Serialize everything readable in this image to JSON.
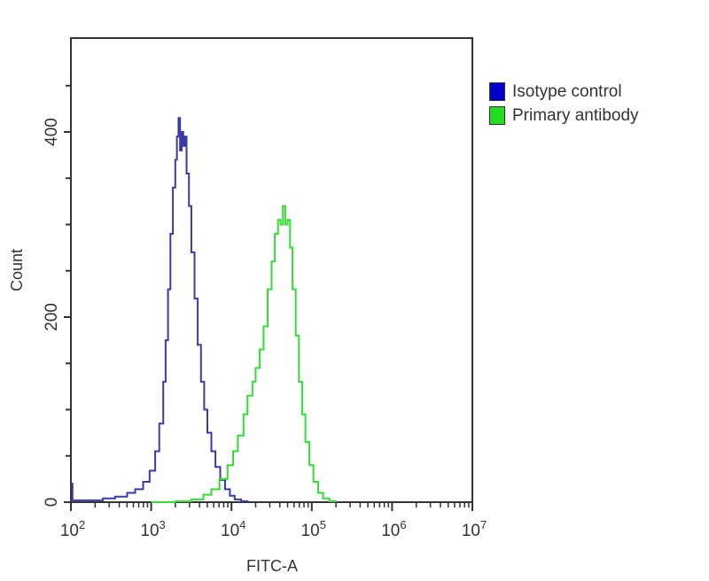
{
  "chart_data": {
    "type": "line",
    "title": "",
    "xlabel": "FITC-A",
    "ylabel": "Count",
    "xscale": "log",
    "xlim_log10": [
      2,
      7
    ],
    "ylim": [
      0,
      500
    ],
    "x_ticks": [
      {
        "exp": 2,
        "label": "10",
        "sup": "2"
      },
      {
        "exp": 3,
        "label": "10",
        "sup": "3"
      },
      {
        "exp": 4,
        "label": "10",
        "sup": "4"
      },
      {
        "exp": 5,
        "label": "10",
        "sup": "5"
      },
      {
        "exp": 6,
        "label": "10",
        "sup": "6"
      },
      {
        "exp": 7,
        "label": "10",
        "sup": "7"
      }
    ],
    "y_ticks": [
      0,
      200,
      400
    ],
    "y_minor_step": 50,
    "grid": false,
    "legend_position": "right-outside-top",
    "series": [
      {
        "name": "Isotype control",
        "color": "#0000cc",
        "line_color": "#3a3aa8",
        "peak": {
          "log10_x": 3.34,
          "count": 415
        },
        "points": [
          [
            2.0,
            20
          ],
          [
            2.02,
            2
          ],
          [
            2.2,
            2
          ],
          [
            2.4,
            4
          ],
          [
            2.55,
            6
          ],
          [
            2.7,
            10
          ],
          [
            2.8,
            14
          ],
          [
            2.9,
            22
          ],
          [
            2.98,
            34
          ],
          [
            3.05,
            55
          ],
          [
            3.1,
            85
          ],
          [
            3.15,
            130
          ],
          [
            3.18,
            175
          ],
          [
            3.21,
            230
          ],
          [
            3.24,
            290
          ],
          [
            3.27,
            340
          ],
          [
            3.3,
            370
          ],
          [
            3.32,
            395
          ],
          [
            3.34,
            415
          ],
          [
            3.36,
            380
          ],
          [
            3.38,
            400
          ],
          [
            3.4,
            385
          ],
          [
            3.42,
            395
          ],
          [
            3.44,
            355
          ],
          [
            3.47,
            320
          ],
          [
            3.5,
            270
          ],
          [
            3.54,
            220
          ],
          [
            3.58,
            170
          ],
          [
            3.62,
            130
          ],
          [
            3.66,
            100
          ],
          [
            3.7,
            75
          ],
          [
            3.75,
            55
          ],
          [
            3.8,
            38
          ],
          [
            3.86,
            24
          ],
          [
            3.92,
            14
          ],
          [
            3.98,
            7
          ],
          [
            4.04,
            3
          ],
          [
            4.12,
            1
          ],
          [
            4.2,
            0
          ]
        ]
      },
      {
        "name": "Primary antibody",
        "color": "#22dd22",
        "line_color": "#33dd33",
        "peak": {
          "log10_x": 4.64,
          "count": 320
        },
        "points": [
          [
            3.0,
            0
          ],
          [
            3.3,
            1
          ],
          [
            3.5,
            3
          ],
          [
            3.65,
            8
          ],
          [
            3.75,
            14
          ],
          [
            3.85,
            25
          ],
          [
            3.95,
            40
          ],
          [
            4.02,
            55
          ],
          [
            4.08,
            72
          ],
          [
            4.15,
            95
          ],
          [
            4.2,
            115
          ],
          [
            4.26,
            130
          ],
          [
            4.3,
            145
          ],
          [
            4.35,
            165
          ],
          [
            4.4,
            190
          ],
          [
            4.45,
            230
          ],
          [
            4.5,
            260
          ],
          [
            4.54,
            290
          ],
          [
            4.58,
            305
          ],
          [
            4.61,
            300
          ],
          [
            4.64,
            320
          ],
          [
            4.67,
            300
          ],
          [
            4.7,
            305
          ],
          [
            4.73,
            275
          ],
          [
            4.76,
            230
          ],
          [
            4.8,
            180
          ],
          [
            4.84,
            130
          ],
          [
            4.88,
            95
          ],
          [
            4.92,
            65
          ],
          [
            4.97,
            40
          ],
          [
            5.02,
            22
          ],
          [
            5.08,
            10
          ],
          [
            5.14,
            4
          ],
          [
            5.22,
            1
          ],
          [
            5.3,
            0
          ]
        ]
      }
    ]
  },
  "legend": {
    "items": [
      {
        "label": "Isotype control",
        "color": "#0000cc"
      },
      {
        "label": "Primary antibody",
        "color": "#22dd22"
      }
    ]
  },
  "axes": {
    "x_title": "FITC-A",
    "y_title": "Count"
  },
  "colors": {
    "frame": "#333333",
    "background": "#ffffff"
  }
}
